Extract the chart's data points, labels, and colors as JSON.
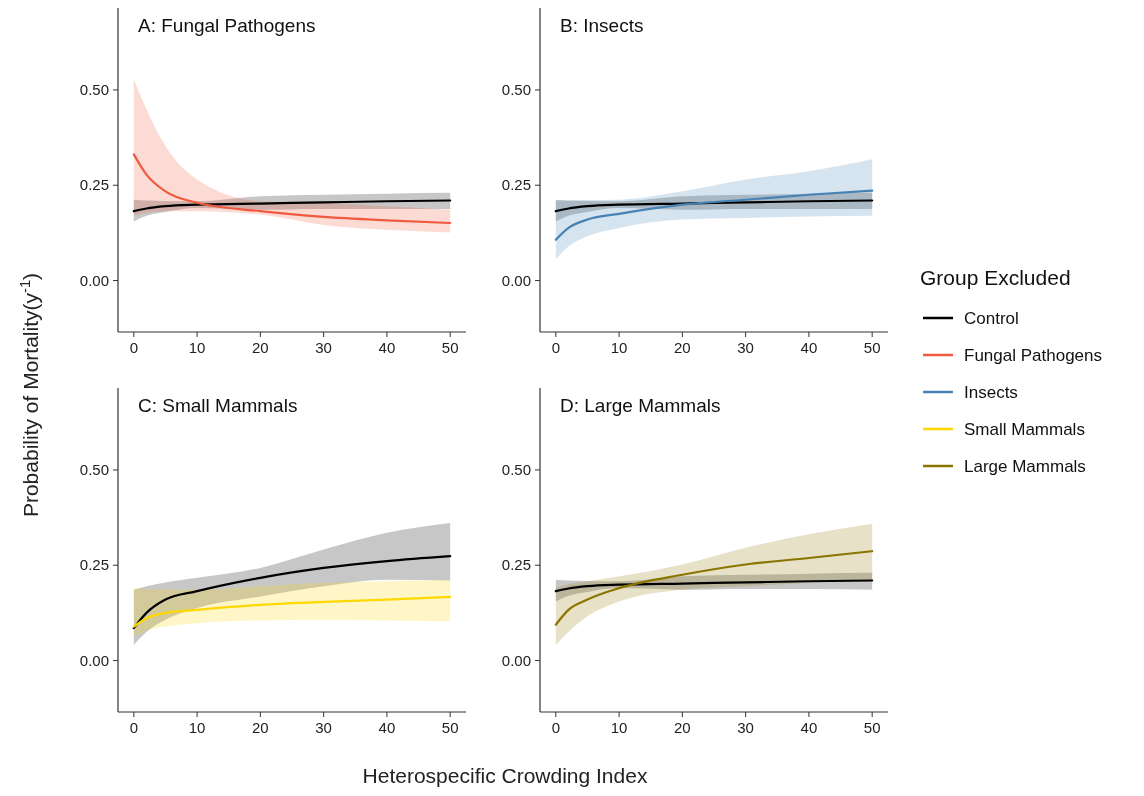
{
  "chart_data": [
    {
      "type": "line",
      "title": "A: Fungal Pathogens",
      "legend": "right",
      "ylabel": "Probability of Mortality(y$^{-1}$)",
      "xlim": [
        -2.5,
        52.5
      ],
      "ylim": [
        -0.135,
        0.715
      ],
      "xticks": [
        0,
        10,
        20,
        30,
        40,
        50
      ],
      "yticks": [
        {
          "value": 0,
          "label": "0.00"
        },
        {
          "value": 0.25,
          "label": "0.25"
        },
        {
          "value": 0.5,
          "label": "0.50"
        }
      ],
      "grid": false,
      "x": [
        0,
        2,
        5,
        10,
        20,
        30,
        40,
        50
      ],
      "series": [
        {
          "name": "Control",
          "color": "#000000",
          "values": [
            0.182,
            0.189,
            0.195,
            0.199,
            0.202,
            0.205,
            0.208,
            0.21
          ],
          "lower": [
            0.155,
            0.17,
            0.18,
            0.19,
            0.186,
            0.188,
            0.188,
            0.188
          ],
          "upper": [
            0.212,
            0.21,
            0.209,
            0.208,
            0.221,
            0.225,
            0.228,
            0.23
          ]
        },
        {
          "name": "Fungal Pathogens",
          "color": "#f05a40",
          "values": [
            0.331,
            0.278,
            0.234,
            0.204,
            0.182,
            0.167,
            0.158,
            0.151
          ],
          "lower": [
            0.17,
            0.178,
            0.182,
            0.182,
            0.173,
            0.146,
            0.133,
            0.126
          ],
          "upper": [
            0.528,
            0.449,
            0.353,
            0.265,
            0.208,
            0.204,
            0.195,
            0.186
          ]
        }
      ]
    },
    {
      "type": "line",
      "title": "B: Insects",
      "legend": "right",
      "legend_title": "Group Excluded",
      "xlim": [
        -2.5,
        52.5
      ],
      "ylim": [
        -0.135,
        0.715
      ],
      "xticks": [
        0,
        10,
        20,
        30,
        40,
        50
      ],
      "yticks": [
        {
          "value": 0,
          "label": "0.00"
        },
        {
          "value": 0.25,
          "label": "0.25"
        },
        {
          "value": 0.5,
          "label": "0.50"
        }
      ],
      "grid": false,
      "x": [
        0,
        2,
        5,
        10,
        20,
        30,
        40,
        50
      ],
      "series": [
        {
          "name": "Control",
          "color": "#000000",
          "values": [
            0.182,
            0.189,
            0.195,
            0.199,
            0.202,
            0.205,
            0.208,
            0.21
          ],
          "lower": [
            0.155,
            0.17,
            0.18,
            0.19,
            0.186,
            0.188,
            0.188,
            0.188
          ],
          "upper": [
            0.212,
            0.21,
            0.209,
            0.208,
            0.221,
            0.225,
            0.228,
            0.23
          ]
        },
        {
          "name": "Insects",
          "color": "#4682b4",
          "values": [
            0.107,
            0.138,
            0.16,
            0.175,
            0.199,
            0.212,
            0.225,
            0.236
          ],
          "lower": [
            0.056,
            0.089,
            0.116,
            0.138,
            0.16,
            0.164,
            0.168,
            0.17
          ],
          "upper": [
            0.21,
            0.21,
            0.211,
            0.212,
            0.234,
            0.265,
            0.287,
            0.318
          ]
        }
      ]
    },
    {
      "type": "line",
      "title": "C: Small Mammals",
      "legend": "right",
      "xlabel": "Heterospecific Crowding Index",
      "xlim": [
        -2.5,
        52.5
      ],
      "ylim": [
        -0.135,
        0.715
      ],
      "xticks": [
        0,
        10,
        20,
        30,
        40,
        50
      ],
      "yticks": [
        {
          "value": 0,
          "label": "0.00"
        },
        {
          "value": 0.25,
          "label": "0.25"
        },
        {
          "value": 0.5,
          "label": "0.50"
        }
      ],
      "grid": false,
      "x": [
        0,
        2,
        5,
        10,
        20,
        30,
        40,
        50
      ],
      "series": [
        {
          "name": "Control",
          "color": "#000000",
          "values": [
            0.085,
            0.125,
            0.16,
            0.182,
            0.217,
            0.243,
            0.261,
            0.274
          ],
          "lower": [
            0.041,
            0.075,
            0.107,
            0.138,
            0.168,
            0.195,
            0.212,
            0.21
          ],
          "upper": [
            0.186,
            0.195,
            0.205,
            0.217,
            0.243,
            0.291,
            0.335,
            0.361
          ]
        },
        {
          "name": "Small Mammals",
          "color": "#ffd700",
          "values": [
            0.089,
            0.111,
            0.125,
            0.133,
            0.146,
            0.154,
            0.16,
            0.167
          ],
          "lower": [
            0.063,
            0.078,
            0.089,
            0.098,
            0.105,
            0.107,
            0.105,
            0.103
          ],
          "upper": [
            0.19,
            0.188,
            0.187,
            0.186,
            0.195,
            0.204,
            0.208,
            0.212
          ]
        }
      ]
    },
    {
      "type": "line",
      "title": "D: Large Mammals",
      "legend": "right",
      "xlim": [
        -2.5,
        52.5
      ],
      "ylim": [
        -0.135,
        0.715
      ],
      "xticks": [
        0,
        10,
        20,
        30,
        40,
        50
      ],
      "yticks": [
        {
          "value": 0,
          "label": "0.00"
        },
        {
          "value": 0.25,
          "label": "0.25"
        },
        {
          "value": 0.5,
          "label": "0.50"
        }
      ],
      "grid": false,
      "x": [
        0,
        2,
        5,
        10,
        20,
        30,
        40,
        50
      ],
      "series": [
        {
          "name": "Control",
          "color": "#000000",
          "values": [
            0.182,
            0.189,
            0.195,
            0.199,
            0.202,
            0.205,
            0.208,
            0.21
          ],
          "lower": [
            0.155,
            0.17,
            0.18,
            0.19,
            0.186,
            0.188,
            0.188,
            0.186
          ],
          "upper": [
            0.212,
            0.21,
            0.209,
            0.208,
            0.221,
            0.225,
            0.228,
            0.23
          ]
        },
        {
          "name": "Large Mammals",
          "color": "#8b7500",
          "values": [
            0.094,
            0.133,
            0.16,
            0.19,
            0.225,
            0.252,
            0.269,
            0.287
          ],
          "lower": [
            0.041,
            0.075,
            0.116,
            0.155,
            0.186,
            0.195,
            0.204,
            0.212
          ],
          "upper": [
            0.19,
            0.2,
            0.208,
            0.221,
            0.252,
            0.296,
            0.331,
            0.359
          ]
        }
      ]
    }
  ]
}
